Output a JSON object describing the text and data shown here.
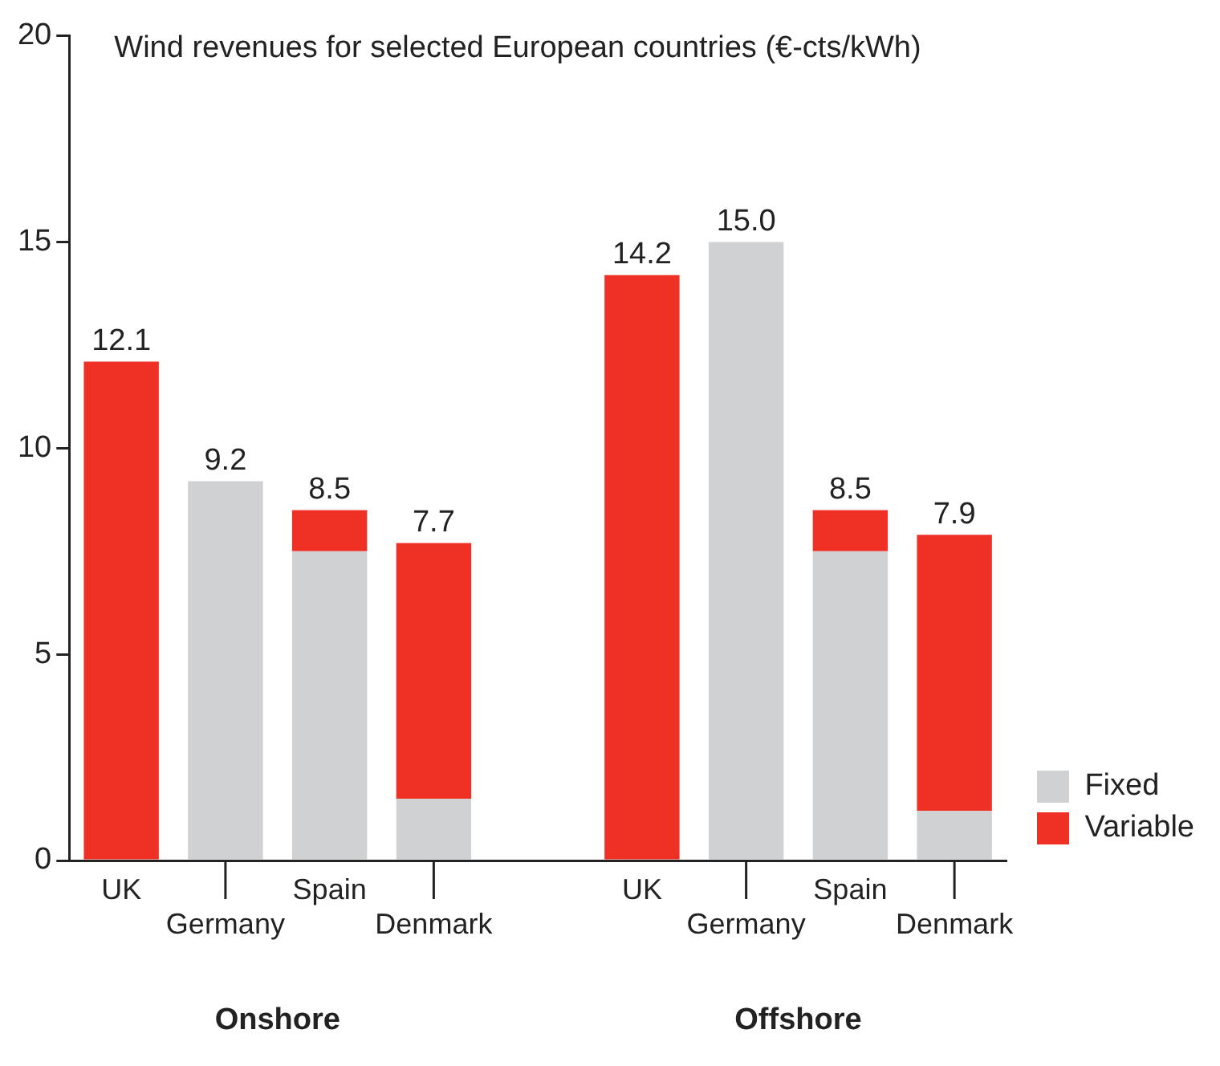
{
  "chart_data": {
    "type": "bar",
    "title": "Wind revenues for selected European countries (€-cts/kWh)",
    "categories": [
      "UK",
      "Germany",
      "Spain",
      "Denmark",
      null,
      "UK",
      "Germany",
      "Spain",
      "Denmark"
    ],
    "series": [
      {
        "name": "Fixed",
        "color": "#d0d1d3",
        "values": [
          0,
          9.2,
          7.5,
          1.5,
          null,
          0,
          15.0,
          7.5,
          1.2
        ]
      },
      {
        "name": "Variable",
        "color": "#ee3124",
        "values": [
          12.1,
          0,
          1.0,
          6.2,
          null,
          14.2,
          0,
          1.0,
          6.7
        ]
      }
    ],
    "stacked": true,
    "totals": [
      "12.1",
      "9.2",
      "8.5",
      "7.7",
      null,
      "14.2",
      "15.0",
      "8.5",
      "7.9"
    ],
    "annotations": [
      "Onshore",
      "Offshore"
    ],
    "ylim": [
      0,
      20
    ],
    "yticks": [
      0,
      5,
      10,
      15,
      20
    ],
    "grid": false,
    "legend": "bottom right"
  }
}
